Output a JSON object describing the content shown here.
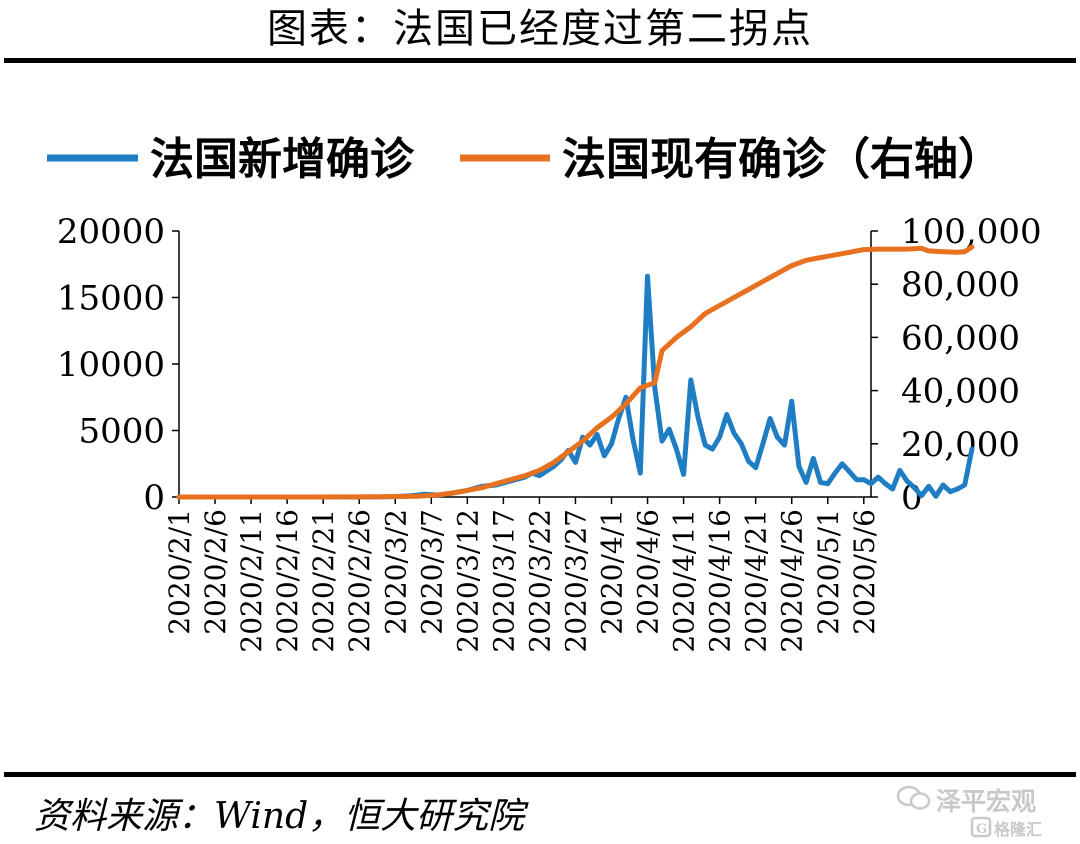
{
  "header": {
    "title": "图表：法国已经度过第二拐点"
  },
  "footer": {
    "source": "资料来源：Wind，恒大研究院",
    "watermark_primary": "泽平宏观",
    "watermark_secondary": "格隆汇"
  },
  "colors": {
    "series_new": "#1f7dc4",
    "series_active": "#e8711f",
    "rules": "#000000",
    "watermark": "#c9c9c9"
  },
  "chart_data": {
    "type": "line",
    "x_tick_labels": [
      "2020/2/1",
      "2020/2/6",
      "2020/2/11",
      "2020/2/16",
      "2020/2/21",
      "2020/2/26",
      "2020/3/2",
      "2020/3/7",
      "2020/3/12",
      "2020/3/17",
      "2020/3/22",
      "2020/3/27",
      "2020/4/1",
      "2020/4/6",
      "2020/4/11",
      "2020/4/16",
      "2020/4/21",
      "2020/4/26",
      "2020/5/1",
      "2020/5/6"
    ],
    "x_start": "2020/2/1",
    "x_end": "2020/5/7",
    "y_left": {
      "min": 0,
      "max": 20000,
      "ticks": [
        0,
        5000,
        10000,
        15000,
        20000
      ],
      "tick_labels": [
        "0",
        "5000",
        "10000",
        "15000",
        "20000"
      ]
    },
    "y_right": {
      "min": 0,
      "max": 100000,
      "ticks": [
        0,
        20000,
        40000,
        60000,
        80000,
        100000
      ],
      "tick_labels": [
        "0",
        "20,000",
        "40,000",
        "60,000",
        "80,000",
        "100,000"
      ]
    },
    "legend_position": "top",
    "series": [
      {
        "name": "法国新增确诊",
        "axis": "left",
        "color": "#1f7dc4",
        "points": [
          [
            "2020/2/1",
            0
          ],
          [
            "2020/2/5",
            0
          ],
          [
            "2020/2/10",
            0
          ],
          [
            "2020/2/15",
            0
          ],
          [
            "2020/2/20",
            0
          ],
          [
            "2020/2/25",
            0
          ],
          [
            "2020/2/29",
            10
          ],
          [
            "2020/3/2",
            40
          ],
          [
            "2020/3/4",
            80
          ],
          [
            "2020/3/6",
            200
          ],
          [
            "2020/3/8",
            150
          ],
          [
            "2020/3/10",
            300
          ],
          [
            "2020/3/12",
            500
          ],
          [
            "2020/3/14",
            800
          ],
          [
            "2020/3/16",
            900
          ],
          [
            "2020/3/18",
            1200
          ],
          [
            "2020/3/20",
            1500
          ],
          [
            "2020/3/21",
            1800
          ],
          [
            "2020/3/22",
            1600
          ],
          [
            "2020/3/24",
            2300
          ],
          [
            "2020/3/25",
            2800
          ],
          [
            "2020/3/26",
            3500
          ],
          [
            "2020/3/27",
            2600
          ],
          [
            "2020/3/28",
            4500
          ],
          [
            "2020/3/29",
            3900
          ],
          [
            "2020/3/30",
            4700
          ],
          [
            "2020/3/31",
            3100
          ],
          [
            "2020/4/1",
            4000
          ],
          [
            "2020/4/2",
            5900
          ],
          [
            "2020/4/3",
            7500
          ],
          [
            "2020/4/4",
            4300
          ],
          [
            "2020/4/5",
            1800
          ],
          [
            "2020/4/6",
            16600
          ],
          [
            "2020/4/7",
            8200
          ],
          [
            "2020/4/8",
            4200
          ],
          [
            "2020/4/9",
            5100
          ],
          [
            "2020/4/10",
            3600
          ],
          [
            "2020/4/11",
            1700
          ],
          [
            "2020/4/12",
            8800
          ],
          [
            "2020/4/13",
            6000
          ],
          [
            "2020/4/14",
            3900
          ],
          [
            "2020/4/15",
            3600
          ],
          [
            "2020/4/16",
            4500
          ],
          [
            "2020/4/17",
            6200
          ],
          [
            "2020/4/18",
            4800
          ],
          [
            "2020/4/19",
            4000
          ],
          [
            "2020/4/20",
            2700
          ],
          [
            "2020/4/21",
            2200
          ],
          [
            "2020/4/22",
            4000
          ],
          [
            "2020/4/23",
            5900
          ],
          [
            "2020/4/24",
            4500
          ],
          [
            "2020/4/25",
            3900
          ],
          [
            "2020/4/26",
            7200
          ],
          [
            "2020/4/27",
            2300
          ],
          [
            "2020/4/28",
            1100
          ],
          [
            "2020/4/29",
            2900
          ],
          [
            "2020/4/30",
            1100
          ],
          [
            "2020/5/1",
            1000
          ],
          [
            "2020/5/2",
            1800
          ],
          [
            "2020/5/3",
            2500
          ],
          [
            "2020/5/4",
            1900
          ],
          [
            "2020/5/5",
            1300
          ],
          [
            "2020/5/6",
            1300
          ],
          [
            "2020/5/7",
            1000
          ],
          [
            "2020/5/8",
            1500
          ],
          [
            "2020/5/9",
            1000
          ],
          [
            "2020/5/10",
            600
          ],
          [
            "2020/5/11",
            2000
          ],
          [
            "2020/5/12",
            1200
          ],
          [
            "2020/5/13",
            700
          ],
          [
            "2020/5/14",
            100
          ],
          [
            "2020/5/15",
            800
          ],
          [
            "2020/5/16",
            50
          ],
          [
            "2020/5/17",
            900
          ],
          [
            "2020/5/18",
            400
          ],
          [
            "2020/5/19",
            600
          ],
          [
            "2020/5/20",
            900
          ],
          [
            "2020/5/21",
            3600
          ]
        ]
      },
      {
        "name": "法国现有确诊（右轴）",
        "axis": "right",
        "color": "#e8711f",
        "points": [
          [
            "2020/2/1",
            0
          ],
          [
            "2020/2/10",
            0
          ],
          [
            "2020/2/20",
            0
          ],
          [
            "2020/2/29",
            100
          ],
          [
            "2020/3/5",
            300
          ],
          [
            "2020/3/8",
            800
          ],
          [
            "2020/3/10",
            1500
          ],
          [
            "2020/3/12",
            2500
          ],
          [
            "2020/3/14",
            3500
          ],
          [
            "2020/3/16",
            5000
          ],
          [
            "2020/3/18",
            6500
          ],
          [
            "2020/3/20",
            8000
          ],
          [
            "2020/3/22",
            10000
          ],
          [
            "2020/3/24",
            13000
          ],
          [
            "2020/3/26",
            17000
          ],
          [
            "2020/3/28",
            21000
          ],
          [
            "2020/3/30",
            26000
          ],
          [
            "2020/4/1",
            30000
          ],
          [
            "2020/4/3",
            35000
          ],
          [
            "2020/4/5",
            41000
          ],
          [
            "2020/4/6",
            42000
          ],
          [
            "2020/4/7",
            43000
          ],
          [
            "2020/4/8",
            55000
          ],
          [
            "2020/4/10",
            60000
          ],
          [
            "2020/4/12",
            64000
          ],
          [
            "2020/4/14",
            69000
          ],
          [
            "2020/4/16",
            72000
          ],
          [
            "2020/4/18",
            75000
          ],
          [
            "2020/4/20",
            78000
          ],
          [
            "2020/4/22",
            81000
          ],
          [
            "2020/4/24",
            84000
          ],
          [
            "2020/4/26",
            87000
          ],
          [
            "2020/4/28",
            89000
          ],
          [
            "2020/4/30",
            90000
          ],
          [
            "2020/5/2",
            91000
          ],
          [
            "2020/5/4",
            92000
          ],
          [
            "2020/5/6",
            93000
          ],
          [
            "2020/5/8",
            93200
          ],
          [
            "2020/5/10",
            93200
          ],
          [
            "2020/5/12",
            93200
          ],
          [
            "2020/5/14",
            93500
          ],
          [
            "2020/5/15",
            92500
          ],
          [
            "2020/5/17",
            92200
          ],
          [
            "2020/5/19",
            92000
          ],
          [
            "2020/5/20",
            92200
          ],
          [
            "2020/5/21",
            94000
          ]
        ]
      }
    ]
  }
}
